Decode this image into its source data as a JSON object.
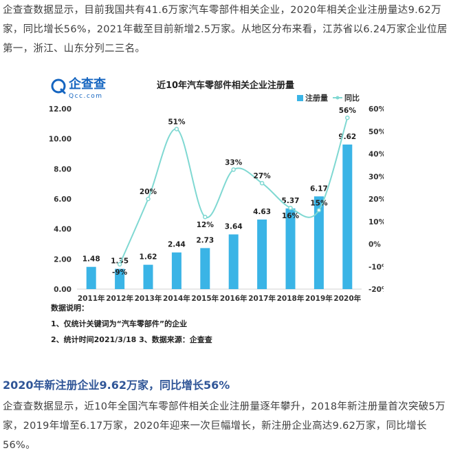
{
  "article": {
    "paragraph1": "企查查数据显示，目前我国共有41.6万家汽车零部件相关企业，2020年相关企业注册量达9.62万家，同比增长56%，2021年截至目前新增2.5万家。从地区分布来看，江苏省以6.24万家企业位居第一，浙江、山东分列二三名。",
    "section_heading": "2020年新注册企业9.62万家，同比增长56%",
    "paragraph2": "企查查数据显示，近10年全国汽车零部件相关企业注册量逐年攀升，2018年新注册量首次突破5万家，2019年增至6.17万家，2020年迎来一次巨幅增长，新注册企业高达9.62万家，同比增长56%。"
  },
  "logo": {
    "name": "企查查",
    "domain": "Qcc.com",
    "color": "#1565c0"
  },
  "chart_data": {
    "type": "bar",
    "title": "近10年汽车零部件相关企业注册量",
    "categories": [
      "2011年",
      "2012年",
      "2013年",
      "2014年",
      "2015年",
      "2016年",
      "2017年",
      "2018年",
      "2019年",
      "2020年"
    ],
    "series": [
      {
        "name": "注册量",
        "type": "bar",
        "axis": "left",
        "color": "#3ab4e6",
        "values": [
          1.48,
          1.35,
          1.62,
          2.44,
          2.73,
          3.64,
          4.63,
          5.37,
          6.17,
          9.62
        ],
        "labels": [
          "1.48",
          "1.35",
          "1.62",
          "2.44",
          "2.73",
          "3.64",
          "4.63",
          "5.37",
          "6.17",
          "9.62"
        ]
      },
      {
        "name": "同比",
        "type": "line",
        "smooth": true,
        "axis": "right",
        "color": "#7fd8d2",
        "values": [
          null,
          -9,
          20,
          51,
          12,
          33,
          27,
          16,
          15,
          56
        ],
        "labels": [
          "",
          "-9%",
          "20%",
          "51%",
          "12%",
          "33%",
          "27%",
          "16%",
          "15%",
          "56%"
        ]
      }
    ],
    "y_left": {
      "ylim": [
        0,
        12
      ],
      "ticks": [
        "0.00",
        "2.00",
        "4.00",
        "6.00",
        "8.00",
        "10.00",
        "12.00"
      ]
    },
    "y_right": {
      "ylim": [
        -20,
        60
      ],
      "ticks": [
        "-20%",
        "-10%",
        "0%",
        "10%",
        "20%",
        "30%",
        "40%",
        "50%",
        "60%"
      ]
    },
    "legend_position": "top-right",
    "grid": false,
    "notes": {
      "heading": "数据说明：",
      "line1": "1、仅统计关键词为“汽车零部件”的企业",
      "line2": "2、统计时间2021/3/18   3、数据来源：企查查"
    }
  }
}
